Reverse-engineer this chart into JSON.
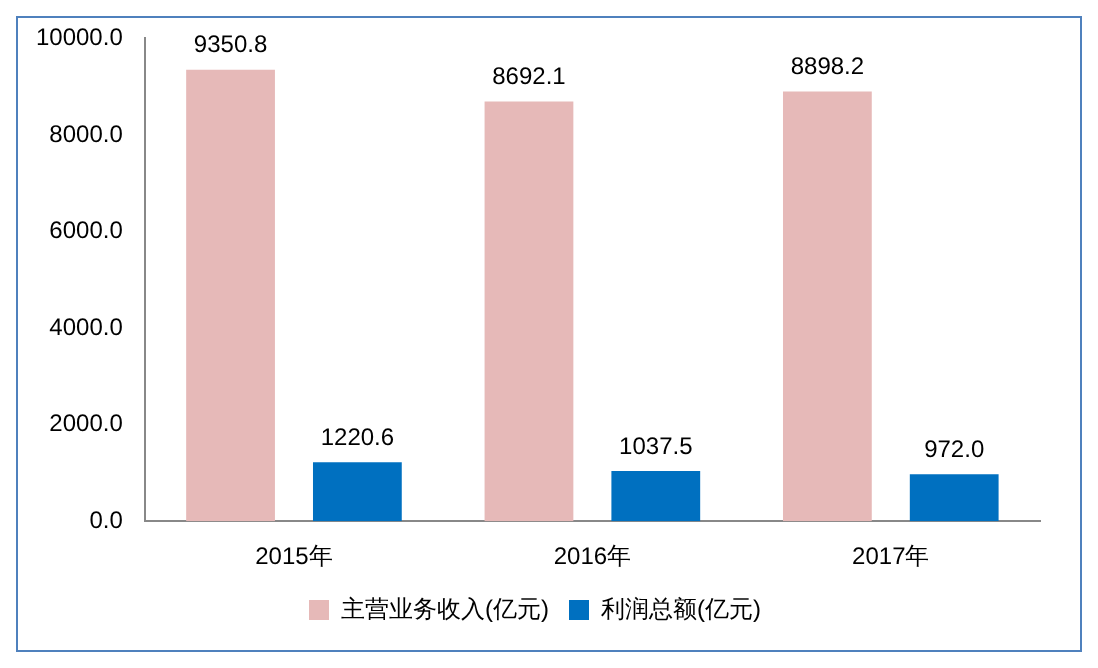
{
  "chart_data": {
    "type": "bar",
    "categories": [
      "2015年",
      "2016年",
      "2017年"
    ],
    "series": [
      {
        "name": "主营业务收入(亿元)",
        "color": "#e6b9b8",
        "values": [
          9350.8,
          8692.1,
          8898.2
        ],
        "value_labels": [
          "9350.8",
          "8692.1",
          "8898.2"
        ]
      },
      {
        "name": "利润总额(亿元)",
        "color": "#0070c0",
        "values": [
          1220.6,
          1037.5,
          972.0
        ],
        "value_labels": [
          "1220.6",
          "1037.5",
          "972.0"
        ]
      }
    ],
    "ylim": [
      0,
      10000
    ],
    "yticks": [
      {
        "value": 0,
        "label": "0.0"
      },
      {
        "value": 2000,
        "label": "2000.0"
      },
      {
        "value": 4000,
        "label": "4000.0"
      },
      {
        "value": 6000,
        "label": "6000.0"
      },
      {
        "value": 8000,
        "label": "8000.0"
      },
      {
        "value": 10000,
        "label": "10000.0"
      }
    ],
    "grid": false,
    "legend": "bottom"
  }
}
